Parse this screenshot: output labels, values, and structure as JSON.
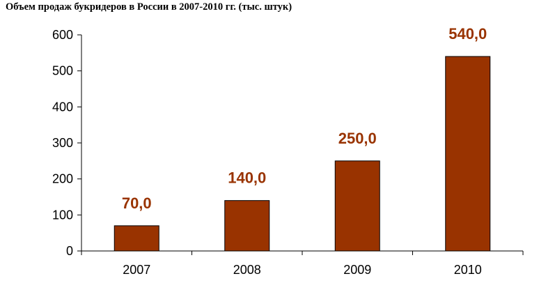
{
  "chart_data": {
    "type": "bar",
    "title": "Объем продаж букридеров в России в 2007-2010 гг. (тыс. штук)",
    "categories": [
      "2007",
      "2008",
      "2009",
      "2010"
    ],
    "values": [
      70.0,
      140.0,
      250.0,
      540.0
    ],
    "data_labels": [
      "70,0",
      "140,0",
      "250,0",
      "540,0"
    ],
    "ylim": [
      0,
      600
    ],
    "yticks": [
      0,
      100,
      200,
      300,
      400,
      500,
      600
    ],
    "xlabel": "",
    "ylabel": "",
    "grid": false,
    "legend": "none",
    "colors": {
      "bar_fill": "#993300",
      "bar_stroke": "#000000",
      "label": "#993300",
      "axis": "#000000"
    }
  }
}
